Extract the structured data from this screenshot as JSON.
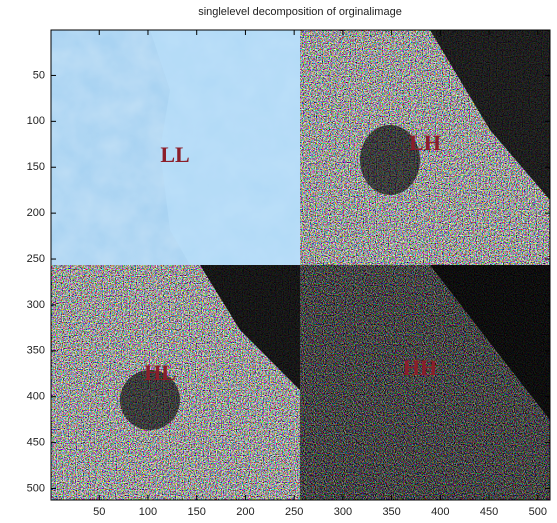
{
  "chart_data": {
    "type": "image",
    "title": "singlelevel decomposition of orginalimage",
    "xlim": [
      0.5,
      512.5
    ],
    "ylim": [
      0.5,
      512.5
    ],
    "ydir": "reverse",
    "xticks": [
      50,
      100,
      150,
      200,
      250,
      300,
      350,
      400,
      450,
      500
    ],
    "yticks": [
      50,
      100,
      150,
      200,
      250,
      300,
      350,
      400,
      450,
      500
    ],
    "annotations": [
      "LL",
      "LH",
      "HL",
      "HH"
    ]
  }
}
